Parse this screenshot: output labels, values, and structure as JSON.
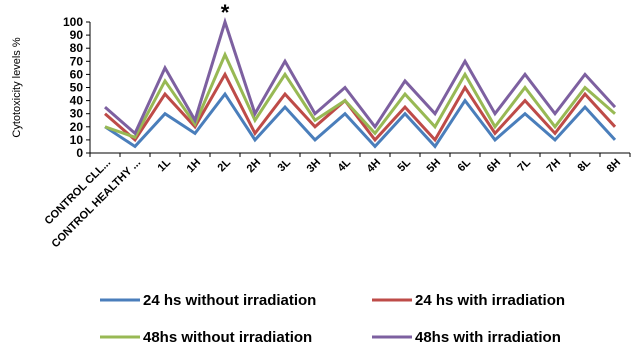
{
  "chart_data": {
    "type": "line",
    "ylabel": "Cytotoxicity levels %",
    "xlabel": "",
    "ylim": [
      0,
      100
    ],
    "yticks": [
      0,
      10,
      20,
      30,
      40,
      50,
      60,
      70,
      80,
      90,
      100
    ],
    "grid": false,
    "legend_position": "bottom",
    "categories": [
      "CONTROL CLL...",
      "CONTROL HEALTHY ...",
      "1L",
      "1H",
      "2L",
      "2H",
      "3L",
      "3H",
      "4L",
      "4H",
      "5L",
      "5H",
      "6L",
      "6H",
      "7L",
      "7H",
      "8L",
      "8H"
    ],
    "annotation": {
      "text": "*",
      "category": "2L"
    },
    "series": [
      {
        "name": "24 hs without irradiation",
        "color": "#4a7ebb",
        "values": [
          20,
          5,
          30,
          15,
          45,
          10,
          35,
          10,
          30,
          5,
          30,
          5,
          40,
          10,
          30,
          10,
          35,
          10
        ]
      },
      {
        "name": "24 hs with irradiation",
        "color": "#be4b48",
        "values": [
          30,
          10,
          45,
          20,
          60,
          15,
          45,
          20,
          40,
          10,
          35,
          10,
          50,
          15,
          40,
          15,
          45,
          20
        ]
      },
      {
        "name": "48hs without irradiation",
        "color": "#98b954",
        "values": [
          20,
          12,
          55,
          22,
          75,
          25,
          60,
          25,
          40,
          15,
          45,
          20,
          60,
          20,
          50,
          20,
          50,
          30
        ]
      },
      {
        "name": "48hs with irradiation",
        "color": "#7d60a0",
        "values": [
          35,
          15,
          65,
          25,
          100,
          30,
          70,
          30,
          50,
          20,
          55,
          30,
          70,
          30,
          60,
          30,
          60,
          35
        ]
      }
    ]
  }
}
